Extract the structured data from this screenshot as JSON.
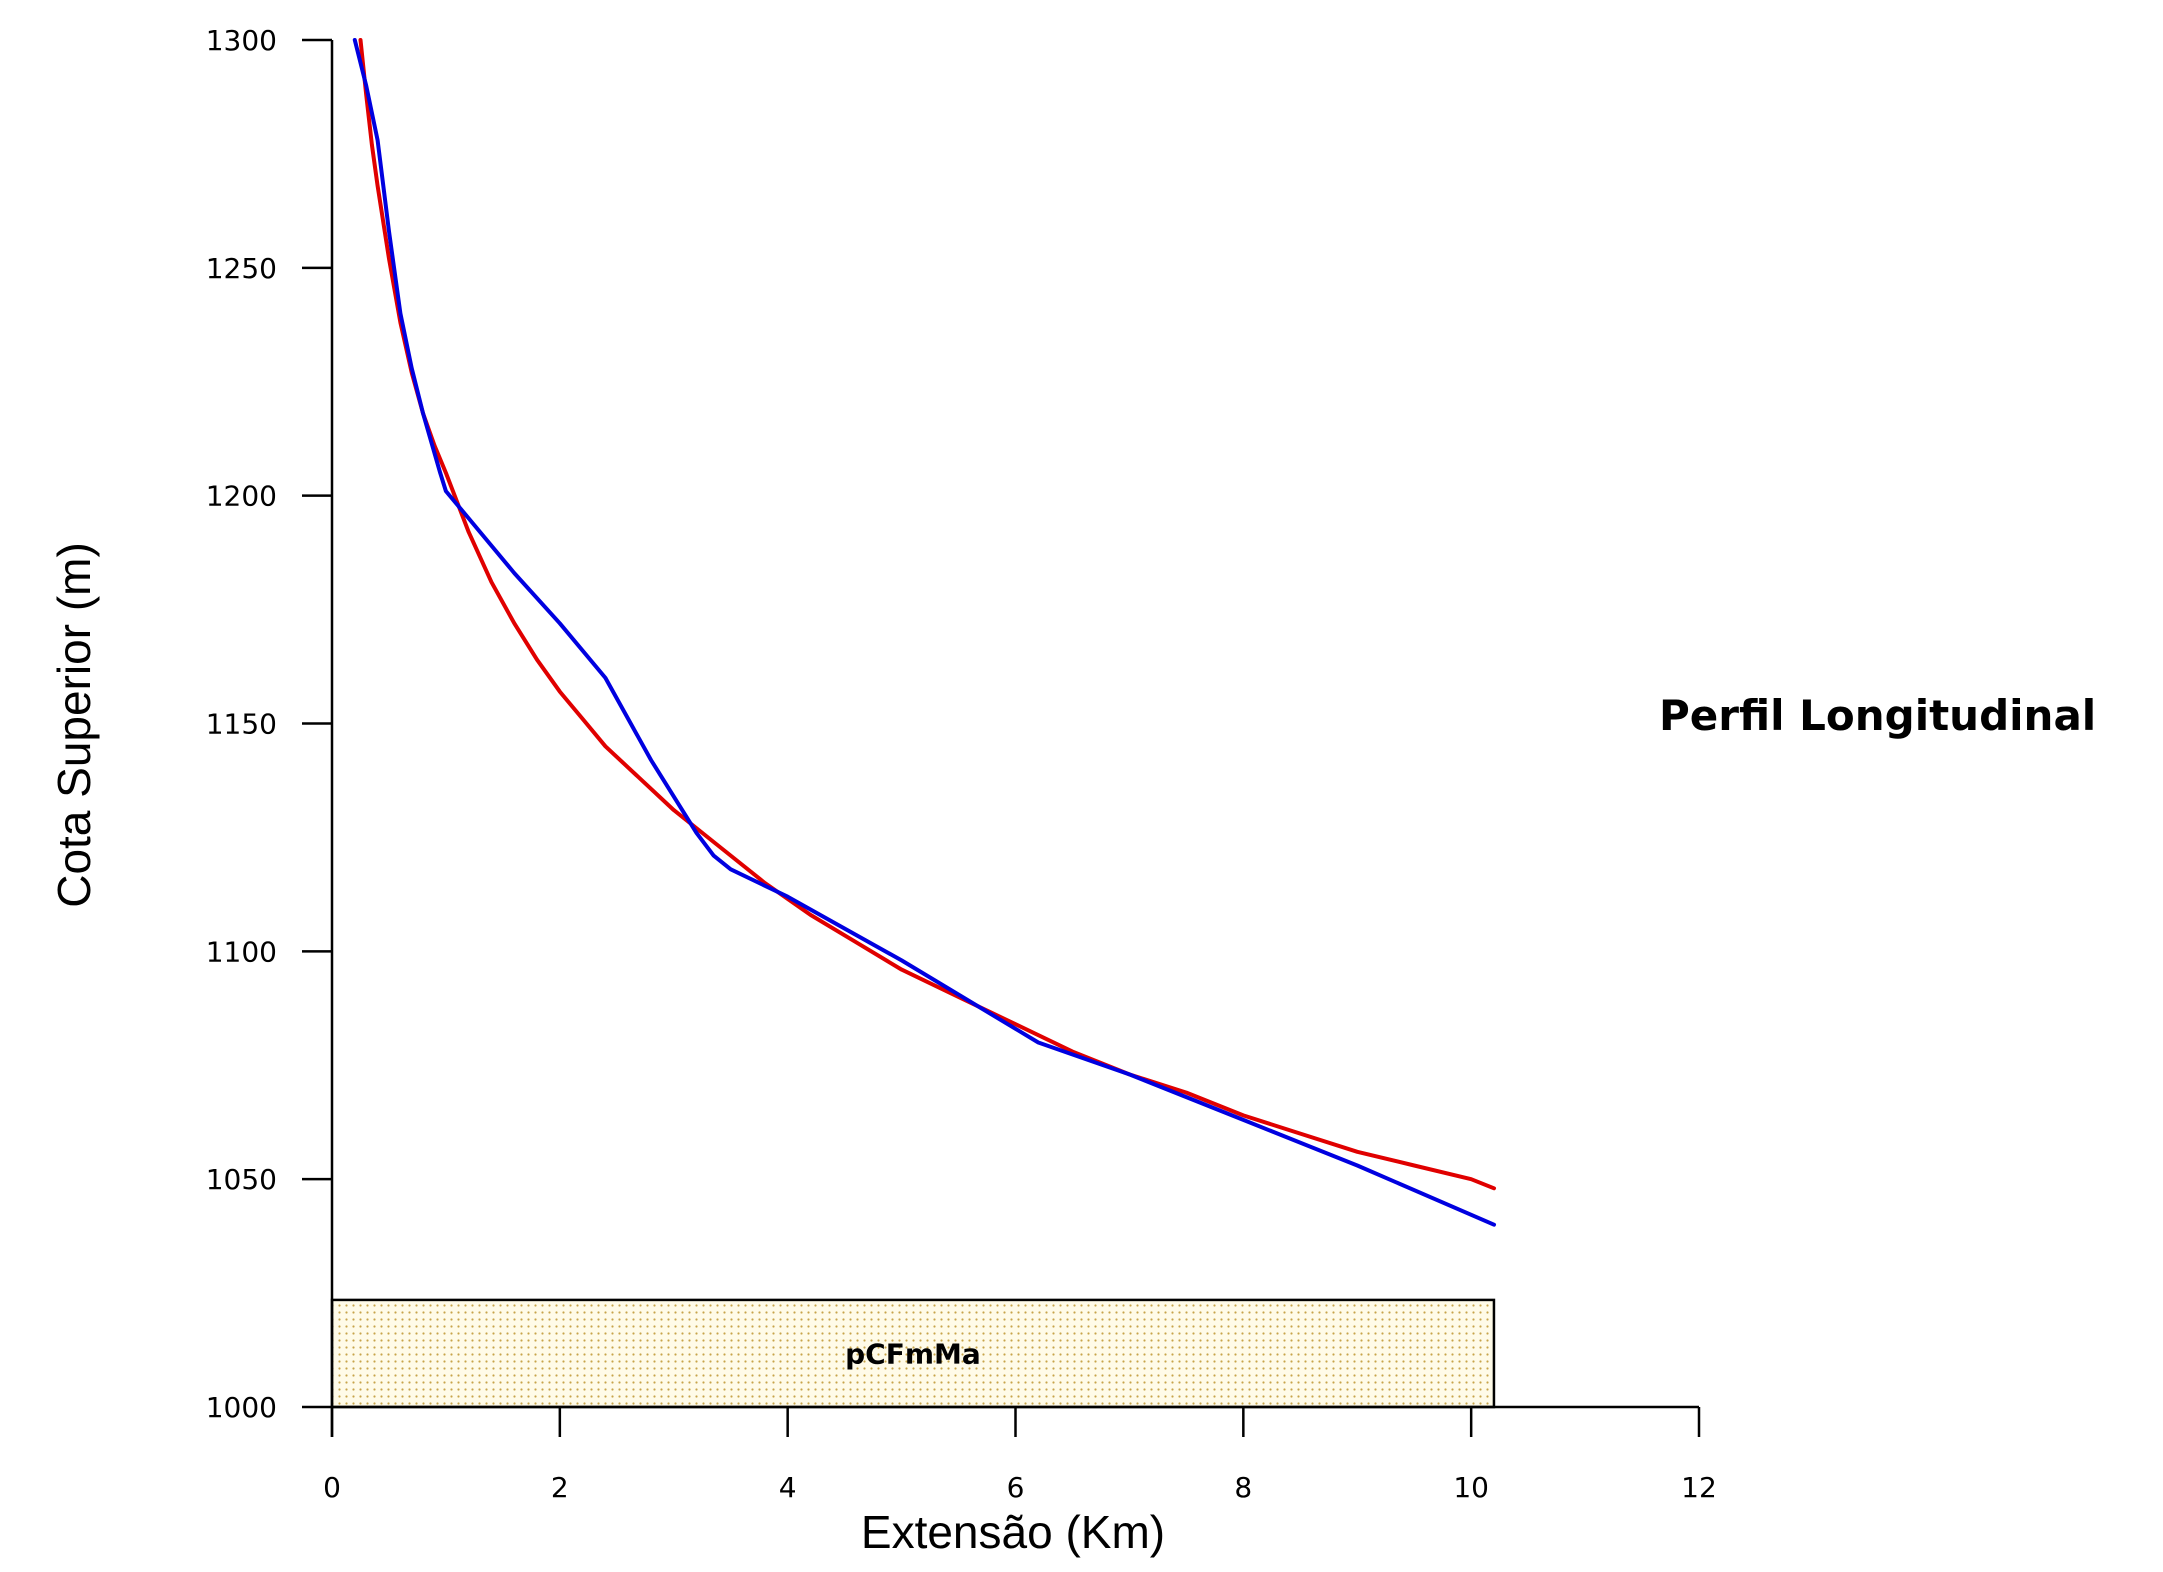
{
  "chart_data": {
    "type": "line",
    "title": "Perfil Longitudinal",
    "xlabel": "Extensão (Km)",
    "ylabel": "Cota Superior (m)",
    "xlim": [
      0,
      12
    ],
    "ylim": [
      1000,
      1300
    ],
    "x_ticks": [
      "0",
      "2",
      "4",
      "6",
      "8",
      "10",
      "12"
    ],
    "y_ticks": [
      "1000",
      "1050",
      "1100",
      "1150",
      "1200",
      "1250",
      "1300"
    ],
    "grid": false,
    "series": [
      {
        "color": "#e00000",
        "x": [
          0.25,
          0.3,
          0.35,
          0.4,
          0.5,
          0.6,
          0.7,
          0.8,
          0.9,
          1.0,
          1.2,
          1.4,
          1.6,
          1.8,
          2.0,
          2.2,
          2.4,
          2.7,
          3.0,
          3.4,
          3.8,
          4.2,
          4.6,
          5.0,
          5.5,
          6.0,
          6.5,
          7.0,
          7.5,
          8.0,
          8.5,
          9.0,
          9.5,
          10.0,
          10.2
        ],
        "y": [
          1300,
          1288,
          1277,
          1268,
          1252,
          1238,
          1227,
          1218,
          1211,
          1205,
          1192,
          1181,
          1172,
          1164,
          1157,
          1151,
          1145,
          1138,
          1131,
          1123,
          1115,
          1108,
          1102,
          1096,
          1090,
          1084,
          1078,
          1073,
          1069,
          1064,
          1060,
          1056,
          1053,
          1050,
          1048
        ]
      },
      {
        "color": "#0000e0",
        "x": [
          0.2,
          0.3,
          0.4,
          0.5,
          0.6,
          0.7,
          0.8,
          0.95,
          1.0,
          1.2,
          1.6,
          2.0,
          2.4,
          2.8,
          3.2,
          3.35,
          3.5,
          4.0,
          5.0,
          6.0,
          6.2,
          7.0,
          8.0,
          9.0,
          10.2
        ],
        "y": [
          1300,
          1290,
          1278,
          1258,
          1240,
          1228,
          1218,
          1205,
          1201,
          1195,
          1183,
          1172,
          1160,
          1142,
          1126,
          1121,
          1118,
          1112,
          1098,
          1083,
          1080,
          1073,
          1063,
          1053,
          1040
        ]
      }
    ],
    "annotations": [
      {
        "text": "pCFmMa",
        "x_range": [
          0,
          10.2
        ],
        "y_range": [
          1000,
          1023.5
        ],
        "fill": "#fffbe8",
        "dot_color": "#c8a44a"
      }
    ]
  }
}
